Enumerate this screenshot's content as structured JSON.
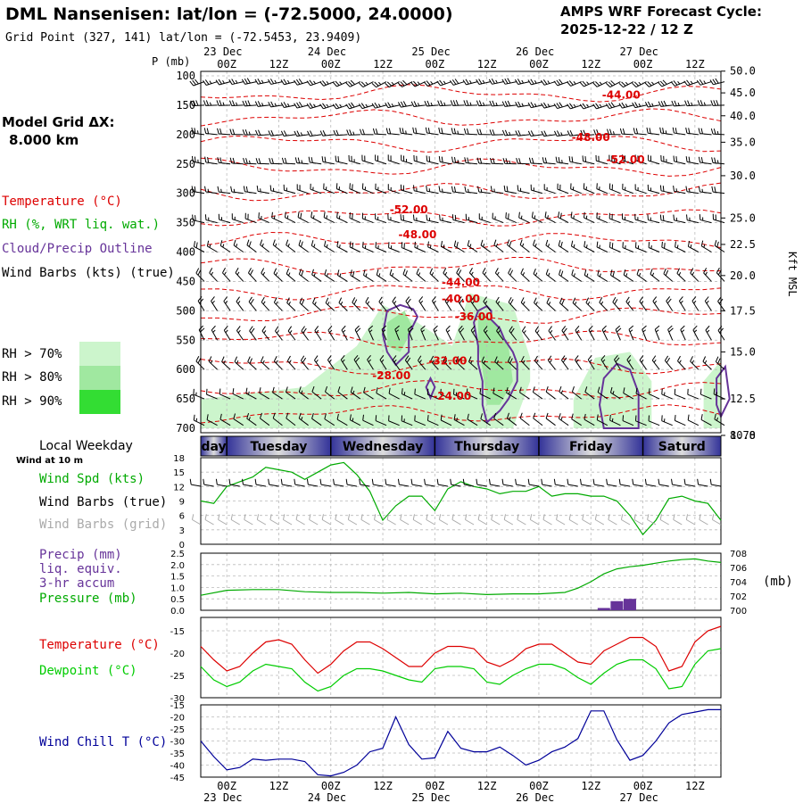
{
  "header": {
    "station": "DML Nansenisen:  lat/lon = (-72.5000, 24.0000)",
    "grid_point": "Grid Point (327, 141) lat/lon = (-72.5453, 23.9409)",
    "cycle_label": "AMPS WRF Forecast Cycle:",
    "cycle_value": "2025-12-22 / 12  Z"
  },
  "model_grid": {
    "label": "Model Grid ΔX:",
    "value": "8.000 km"
  },
  "colors": {
    "temperature": "#dd0000",
    "rh": "#00aa00",
    "cloud": "#663399",
    "wind_barb": "#000000",
    "wind_barb_grid": "#aaaaaa",
    "wind_speed": "#00aa00",
    "precip": "#663399",
    "pressure": "#00aa00",
    "dewpoint": "#00cc00",
    "wind_chill": "#000099",
    "rh70": "#ccf5cc",
    "rh80": "#a0e8a0",
    "rh90": "#33dd33",
    "weekday_dark": "#333399",
    "weekday_light": "#dddddd"
  },
  "time_axis": {
    "top_dates": [
      "23 Dec",
      "24 Dec",
      "25 Dec",
      "26 Dec",
      "27 Dec"
    ],
    "bottom_dates": [
      "23 Dec",
      "24 Dec",
      "25 Dec",
      "26 Dec",
      "27 Dec"
    ],
    "hour_labels": [
      "00Z",
      "12Z",
      "00Z",
      "12Z",
      "00Z",
      "12Z",
      "00Z",
      "12Z",
      "00Z",
      "12Z"
    ]
  },
  "legend": {
    "temperature": "Temperature (°C)",
    "rh": "RH (%, WRT liq. wat.)",
    "cloud": "Cloud/Precip Outline",
    "wind_barbs": "Wind Barbs (kts) (true)",
    "rh70": "RH > 70%",
    "rh80": "RH > 80%",
    "rh90": "RH > 90%"
  },
  "weekday_band": {
    "title": "Local Weekday",
    "days": [
      "day",
      "Tuesday",
      "Wednesday",
      "Thursday",
      "Friday",
      "Saturd"
    ]
  },
  "chart_data": [
    {
      "type": "heatmap",
      "name": "upper-air-cross-section",
      "ylabel": "P (mb)",
      "right_label": "Kft MSL",
      "pressure_ticks": [
        "100",
        "150",
        "200",
        "250",
        "300",
        "350",
        "400",
        "450",
        "500",
        "550",
        "600",
        "650",
        "700"
      ],
      "kft_ticks": [
        "50.0",
        "45.0",
        "40.0",
        "35.0",
        "30.0",
        "25.0",
        "22.5",
        "20.0",
        "17.5",
        "15.0",
        "12.5",
        "10.0",
        "8.78"
      ],
      "kft_values": [
        50.0,
        45.0,
        40.0,
        35.0,
        30.0,
        25.0,
        22.5,
        20.0,
        17.5,
        15.0,
        12.5,
        10.0,
        8.78
      ],
      "kft_pressure": [
        92,
        129,
        168,
        213,
        270,
        342,
        387,
        440,
        500,
        570,
        650,
        742,
        767
      ],
      "ylim": [
        100,
        700
      ],
      "xlim_hours": [
        0,
        120
      ],
      "temperature_labels": [
        {
          "text": "-44.00",
          "t": 97,
          "p": 133
        },
        {
          "text": "-48.00",
          "t": 90,
          "p": 205
        },
        {
          "text": "-52.00",
          "t": 98,
          "p": 243
        },
        {
          "text": "-52.00",
          "t": 48,
          "p": 328
        },
        {
          "text": "-48.00",
          "t": 50,
          "p": 370
        },
        {
          "text": "-44.00",
          "t": 60,
          "p": 452
        },
        {
          "text": "-40.00",
          "t": 60,
          "p": 480
        },
        {
          "text": "-36.00",
          "t": 63,
          "p": 510
        },
        {
          "text": "-32.00",
          "t": 57,
          "p": 585
        },
        {
          "text": "-28.00",
          "t": 44,
          "p": 610
        },
        {
          "text": "-24.00",
          "t": 58,
          "p": 645
        }
      ],
      "cloud_outlines": [
        [
          [
            43,
            500
          ],
          [
            46,
            490
          ],
          [
            49,
            497
          ],
          [
            50,
            510
          ],
          [
            48,
            540
          ],
          [
            48,
            570
          ],
          [
            45,
            592
          ],
          [
            43,
            570
          ],
          [
            42,
            540
          ]
        ],
        [
          [
            52,
            630
          ],
          [
            53,
            615
          ],
          [
            54,
            630
          ],
          [
            53,
            648
          ]
        ],
        [
          [
            63,
            520
          ],
          [
            64,
            500
          ],
          [
            66,
            492
          ],
          [
            67,
            500
          ],
          [
            67,
            515
          ],
          [
            69,
            530
          ],
          [
            70,
            548
          ],
          [
            72,
            570
          ],
          [
            73,
            590
          ],
          [
            73,
            620
          ],
          [
            71,
            650
          ],
          [
            69,
            670
          ],
          [
            66,
            690
          ],
          [
            65,
            660
          ],
          [
            65,
            620
          ],
          [
            64,
            590
          ],
          [
            64,
            560
          ]
        ],
        [
          [
            93,
            700
          ],
          [
            92,
            660
          ],
          [
            93,
            615
          ],
          [
            96,
            590
          ],
          [
            99,
            600
          ],
          [
            101,
            640
          ],
          [
            101,
            700
          ]
        ],
        [
          [
            119,
            615
          ],
          [
            121,
            595
          ],
          [
            122,
            650
          ],
          [
            120,
            680
          ],
          [
            119,
            660
          ]
        ]
      ],
      "rh_regions": [
        {
          "level": 70,
          "points": [
            [
              0,
              700
            ],
            [
              0,
              650
            ],
            [
              12,
              640
            ],
            [
              24,
              630
            ],
            [
              36,
              560
            ],
            [
              42,
              490
            ],
            [
              50,
              520
            ],
            [
              58,
              560
            ],
            [
              62,
              470
            ],
            [
              72,
              490
            ],
            [
              76,
              580
            ],
            [
              76,
              620
            ],
            [
              72,
              700
            ]
          ]
        },
        {
          "level": 70,
          "points": [
            [
              86,
              700
            ],
            [
              86,
              650
            ],
            [
              91,
              580
            ],
            [
              99,
              570
            ],
            [
              104,
              620
            ],
            [
              104,
              700
            ]
          ]
        },
        {
          "level": 70,
          "points": [
            [
              116,
              700
            ],
            [
              116,
              620
            ],
            [
              120,
              585
            ],
            [
              120,
              700
            ]
          ]
        },
        {
          "level": 80,
          "points": [
            [
              64,
              500
            ],
            [
              68,
              520
            ],
            [
              71,
              560
            ],
            [
              72,
              620
            ],
            [
              69,
              660
            ],
            [
              66,
              660
            ],
            [
              65,
              600
            ],
            [
              64,
              560
            ]
          ]
        },
        {
          "level": 80,
          "points": [
            [
              43,
              520
            ],
            [
              47,
              500
            ],
            [
              49,
              530
            ],
            [
              46,
              570
            ],
            [
              43,
              560
            ]
          ]
        }
      ],
      "wind_barbs": {
        "hours": [
          0,
          3,
          6,
          9,
          12,
          15,
          18,
          21,
          24,
          27,
          30,
          33,
          36,
          39,
          42,
          45,
          48,
          51,
          54,
          57,
          60,
          63,
          66,
          69,
          72,
          75,
          78,
          81,
          84,
          87,
          90,
          93,
          96,
          99,
          102,
          105,
          108,
          111,
          114,
          117,
          120
        ],
        "pressures": [
          110,
          150,
          200,
          250,
          300,
          350,
          400,
          450,
          500,
          550,
          600,
          650,
          695
        ],
        "direction_deg": [
          250,
          260,
          270,
          280,
          285,
          290,
          300,
          310,
          320,
          330,
          320,
          300,
          300
        ],
        "speed_kts": [
          25,
          25,
          20,
          20,
          15,
          15,
          15,
          15,
          15,
          15,
          15,
          10,
          10
        ]
      }
    },
    {
      "type": "line",
      "name": "surface-wind",
      "title": "Wind at 10 m",
      "labels": [
        "Wind Spd (kts)",
        "Wind Barbs (true)",
        "Wind Barbs (grid)"
      ],
      "yticks": [
        "0",
        "3",
        "6",
        "9",
        "12",
        "15",
        "18"
      ],
      "ylim": [
        0,
        18
      ],
      "x": [
        0,
        3,
        6,
        9,
        12,
        15,
        18,
        21,
        24,
        27,
        30,
        33,
        36,
        39,
        42,
        45,
        48,
        51,
        54,
        57,
        60,
        63,
        66,
        69,
        72,
        75,
        78,
        81,
        84,
        87,
        90,
        93,
        96,
        99,
        102,
        105,
        108,
        111,
        114,
        117,
        120
      ],
      "series": [
        {
          "name": "Wind Spd (kts)",
          "values": [
            9,
            8.5,
            12,
            13,
            14,
            16,
            15.5,
            15,
            13.5,
            15,
            16.5,
            17,
            14.5,
            11,
            5,
            8,
            10,
            10,
            7,
            11.5,
            13,
            12,
            11.5,
            10.5,
            11,
            11,
            12,
            10,
            10.5,
            10.5,
            10,
            10,
            9,
            6,
            2,
            5,
            9.5,
            10,
            9,
            8.5,
            5
          ]
        }
      ],
      "barbs_true": {
        "direction_deg": 280,
        "speed_kts": 10
      },
      "barbs_grid": {
        "direction_deg": 300,
        "speed_kts": 10
      }
    },
    {
      "type": "bar",
      "name": "precip-pressure",
      "labels": [
        "Precip (mm)",
        "liq. equiv.",
        "3-hr accum",
        "Pressure (mb)"
      ],
      "units_label": "(mb)",
      "yticks_left": [
        "0.0",
        "0.5",
        "1.0",
        "1.5",
        "2.0",
        "2.5"
      ],
      "yticks_right": [
        "700",
        "702",
        "704",
        "706",
        "708"
      ],
      "ylim": [
        0,
        2.5
      ],
      "y2lim": [
        700,
        708
      ],
      "precip_x": [
        93,
        96,
        99
      ],
      "precip_mm": [
        0.1,
        0.4,
        0.5
      ],
      "pressure_x": [
        0,
        6,
        12,
        18,
        24,
        30,
        36,
        42,
        48,
        54,
        60,
        66,
        72,
        78,
        84,
        87,
        90,
        93,
        96,
        99,
        102,
        105,
        108,
        111,
        114,
        117,
        120
      ],
      "pressure_mb": [
        702.1,
        702.8,
        702.9,
        702.9,
        702.6,
        702.5,
        702.5,
        702.4,
        702.5,
        702.3,
        702.4,
        702.2,
        702.3,
        702.3,
        702.5,
        703.1,
        704.0,
        705.1,
        705.8,
        706.1,
        706.3,
        706.6,
        706.9,
        707.1,
        707.2,
        706.9,
        706.7
      ]
    },
    {
      "type": "line",
      "name": "temperature-dewpoint",
      "labels": [
        "Temperature (°C)",
        "Dewpoint (°C)"
      ],
      "yticks": [
        "-30",
        "-25",
        "-20",
        "-15"
      ],
      "ylim": [
        -30,
        -12
      ],
      "x": [
        0,
        3,
        6,
        9,
        12,
        15,
        18,
        21,
        24,
        27,
        30,
        33,
        36,
        39,
        42,
        45,
        48,
        51,
        54,
        57,
        60,
        63,
        66,
        69,
        72,
        75,
        78,
        81,
        84,
        87,
        90,
        93,
        96,
        99,
        102,
        105,
        108,
        111,
        114,
        117,
        120
      ],
      "series": [
        {
          "name": "Temperature",
          "values": [
            -18.5,
            -21.5,
            -24,
            -23,
            -20,
            -17.5,
            -17,
            -18,
            -21.5,
            -24.5,
            -22.5,
            -19.5,
            -17.5,
            -17.5,
            -19,
            -21,
            -23,
            -23,
            -20,
            -18.5,
            -18.5,
            -19,
            -22,
            -23,
            -21.5,
            -19,
            -18,
            -18,
            -20,
            -22,
            -22.5,
            -19.5,
            -18,
            -16.5,
            -16.5,
            -18.5,
            -24,
            -23,
            -17.5,
            -15,
            -14
          ]
        },
        {
          "name": "Dewpoint",
          "values": [
            -23,
            -26,
            -27.5,
            -26.5,
            -24,
            -22.5,
            -23,
            -23.5,
            -26.5,
            -28.5,
            -27.5,
            -25,
            -23.5,
            -23.5,
            -24,
            -25,
            -26,
            -26.5,
            -23.5,
            -23,
            -23,
            -23.5,
            -26.5,
            -27,
            -25,
            -23.5,
            -22.5,
            -22.5,
            -23.5,
            -25.5,
            -27,
            -24.5,
            -22.5,
            -21.5,
            -21.5,
            -23.5,
            -28,
            -27.5,
            -22.5,
            -19.5,
            -19
          ]
        }
      ]
    },
    {
      "type": "line",
      "name": "wind-chill",
      "labels": [
        "Wind Chill T (°C)"
      ],
      "yticks": [
        "-45",
        "-40",
        "-35",
        "-30",
        "-25",
        "-20",
        "-15"
      ],
      "ylim": [
        -45,
        -15
      ],
      "x": [
        0,
        3,
        6,
        9,
        12,
        15,
        18,
        21,
        24,
        27,
        30,
        33,
        36,
        39,
        42,
        45,
        48,
        51,
        54,
        57,
        60,
        63,
        66,
        69,
        72,
        75,
        78,
        81,
        84,
        87,
        90,
        93,
        96,
        99,
        102,
        105,
        108,
        111,
        114,
        117,
        120
      ],
      "series": [
        {
          "name": "Wind Chill T",
          "values": [
            -30,
            -36.5,
            -42,
            -41,
            -37.5,
            -38,
            -37.5,
            -37.5,
            -38.5,
            -44,
            -44.5,
            -43,
            -40,
            -34.5,
            -33,
            -20,
            -31.5,
            -37.5,
            -37,
            -26,
            -33,
            -34.5,
            -34.5,
            -32.5,
            -36,
            -40,
            -38,
            -34.5,
            -32.5,
            -29,
            -17.5,
            -17.5,
            -29.5,
            -38,
            -36,
            -30,
            -22.5,
            -19,
            -18,
            -17,
            -17
          ]
        }
      ]
    }
  ]
}
